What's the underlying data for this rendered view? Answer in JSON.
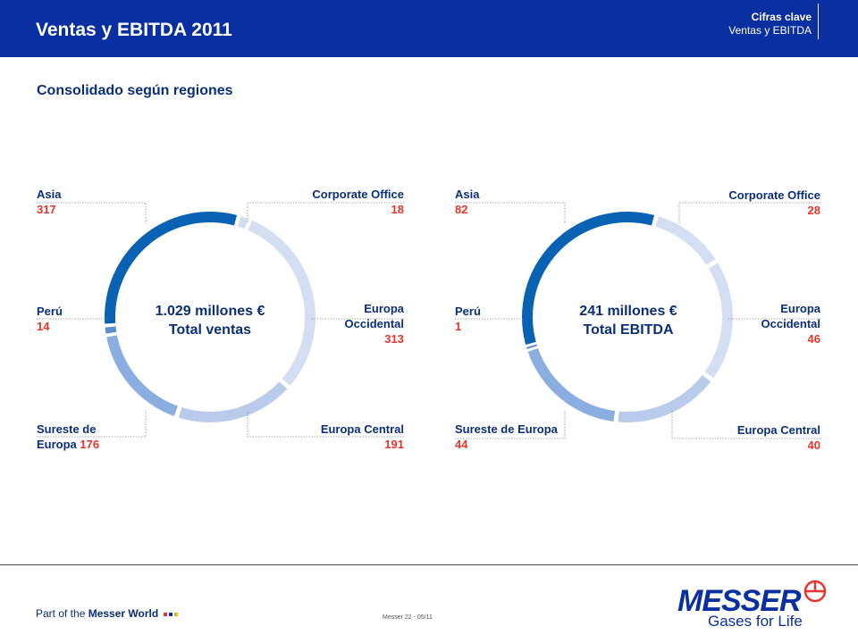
{
  "header": {
    "title": "Ventas y EBITDA 2011",
    "crumb_main": "Cifras clave",
    "crumb_sub": "Ventas y EBITDA"
  },
  "subtitle": "Consolidado según regiones",
  "colors": {
    "dark": "#0a62b5",
    "mid1": "#5b8fcf",
    "mid2": "#8aaee0",
    "light1": "#b8cbea",
    "light2": "#d4def2",
    "label_value": "#e3352a",
    "header": "#0a2fa0"
  },
  "chart_data": [
    {
      "type": "pie",
      "center_text": [
        "1.029 millones €",
        "Total ventas"
      ],
      "slices": [
        {
          "label": "Corporate Office",
          "value": 18
        },
        {
          "label": "Europa Occidental",
          "value": 313
        },
        {
          "label": "Europa Central",
          "value": 191
        },
        {
          "label": "Sureste de Europa",
          "value": 176
        },
        {
          "label": "Perú",
          "value": 14
        },
        {
          "label": "Asia",
          "value": 317
        }
      ]
    },
    {
      "type": "pie",
      "center_text": [
        "241 millones €",
        "Total EBITDA"
      ],
      "slices": [
        {
          "label": "Corporate Office",
          "value": 28
        },
        {
          "label": "Europa Occidental",
          "value": 46
        },
        {
          "label": "Europa Central",
          "value": 40
        },
        {
          "label": "Sureste de Europa",
          "value": 44
        },
        {
          "label": "Perú",
          "value": 1
        },
        {
          "label": "Asia",
          "value": 82
        }
      ]
    }
  ],
  "labels_left": {
    "asia": {
      "name": "Asia",
      "value": "317"
    },
    "corporate": {
      "name": "Corporate Office",
      "value": "18"
    },
    "peru": {
      "name": "Perú",
      "value": "14"
    },
    "europa_occ": {
      "name1": "Europa",
      "name2": "Occidental",
      "value": "313"
    },
    "sureste": {
      "name1": "Sureste de",
      "name2": "Europa",
      "value": "176"
    },
    "europa_central": {
      "name": "Europa Central",
      "value": "191"
    }
  },
  "labels_right": {
    "asia": {
      "name": "Asia",
      "value": "82"
    },
    "corporate": {
      "name": "Corporate Office",
      "value": "28"
    },
    "peru": {
      "name": "Perú",
      "value": "1"
    },
    "europa_occ": {
      "name1": "Europa",
      "name2": "Occidental",
      "value": "46"
    },
    "sureste": {
      "name": "Sureste de Europa",
      "value": "44"
    },
    "europa_central": {
      "name": "Europa Central",
      "value": "40"
    }
  },
  "footer": {
    "part_prefix": "Part of the ",
    "part_brand": "Messer World",
    "page": "Messer 22 - 05/11",
    "logo_word": "MESSER",
    "logo_tag": "Gases for Life"
  }
}
